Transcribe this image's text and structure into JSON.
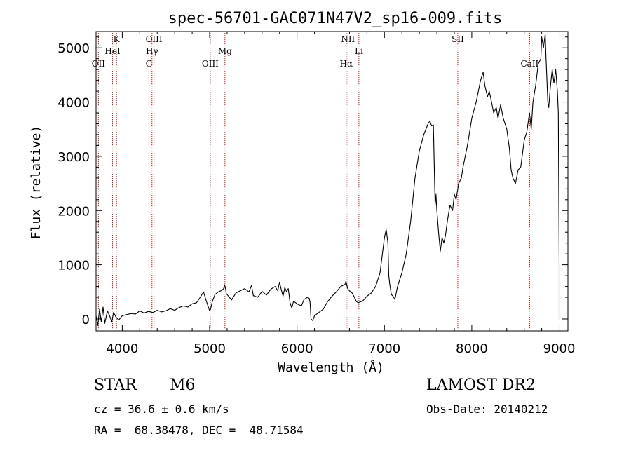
{
  "chart_data": {
    "type": "line",
    "title": "spec-56701-GAC071N47V2_sp16-009.fits",
    "xlabel": "Wavelength (Å)",
    "ylabel": "Flux (relative)",
    "xlim": [
      3700,
      9100
    ],
    "ylim": [
      -220,
      5300
    ],
    "xticks": [
      4000,
      5000,
      6000,
      7000,
      8000,
      9000
    ],
    "yticks": [
      0,
      1000,
      2000,
      3000,
      4000,
      5000
    ],
    "grid": false,
    "line_color": "#000000",
    "marker_color": "#b22222",
    "series": [
      {
        "x": [
          3700,
          3720,
          3740,
          3760,
          3780,
          3800,
          3830,
          3860,
          3880,
          3900,
          3930,
          3960,
          4000,
          4050,
          4100,
          4150,
          4200,
          4250,
          4300,
          4350,
          4400,
          4450,
          4500,
          4550,
          4600,
          4650,
          4700,
          4750,
          4800,
          4850,
          4900,
          4930,
          4960,
          5000,
          5010,
          5030,
          5060,
          5100,
          5130,
          5160,
          5170,
          5180,
          5190,
          5210,
          5250,
          5300,
          5350,
          5400,
          5450,
          5480,
          5500,
          5550,
          5600,
          5650,
          5700,
          5750,
          5780,
          5800,
          5820,
          5840,
          5860,
          5880,
          5900,
          5920,
          5940,
          5960,
          6000,
          6050,
          6080,
          6100,
          6120,
          6140,
          6150,
          6160,
          6180,
          6200,
          6250,
          6300,
          6350,
          6400,
          6450,
          6500,
          6550,
          6560,
          6580,
          6600,
          6630,
          6650,
          6680,
          6700,
          6750,
          6800,
          6850,
          6900,
          6950,
          7000,
          7020,
          7040,
          7050,
          7060,
          7080,
          7100,
          7120,
          7150,
          7200,
          7250,
          7300,
          7350,
          7400,
          7450,
          7500,
          7520,
          7540,
          7560,
          7580,
          7590,
          7600,
          7620,
          7640,
          7660,
          7680,
          7700,
          7720,
          7750,
          7780,
          7800,
          7820,
          7850,
          7880,
          7900,
          7950,
          8000,
          8050,
          8100,
          8130,
          8150,
          8180,
          8200,
          8220,
          8250,
          8280,
          8300,
          8330,
          8360,
          8400,
          8430,
          8450,
          8470,
          8500,
          8530,
          8560,
          8600,
          8630,
          8660,
          8680,
          8700,
          8730,
          8760,
          8790,
          8800,
          8820,
          8840,
          8850,
          8860,
          8870,
          8880,
          8900,
          8920,
          8940,
          8960,
          8980,
          8990,
          9000,
          9000,
          9000
        ],
        "y": [
          60,
          -120,
          180,
          -60,
          220,
          -80,
          150,
          40,
          -60,
          120,
          30,
          -20,
          60,
          80,
          100,
          90,
          150,
          110,
          140,
          120,
          160,
          130,
          150,
          190,
          160,
          210,
          240,
          220,
          280,
          300,
          420,
          500,
          340,
          150,
          180,
          320,
          450,
          500,
          520,
          560,
          630,
          580,
          470,
          430,
          350,
          480,
          520,
          560,
          500,
          620,
          430,
          400,
          510,
          440,
          550,
          600,
          520,
          680,
          540,
          420,
          580,
          500,
          560,
          300,
          200,
          330,
          280,
          240,
          360,
          380,
          400,
          380,
          300,
          0,
          -30,
          60,
          120,
          180,
          320,
          420,
          500,
          600,
          640,
          700,
          560,
          520,
          480,
          420,
          320,
          300,
          330,
          420,
          480,
          600,
          850,
          1500,
          1650,
          1400,
          800,
          650,
          450,
          420,
          360,
          600,
          850,
          1200,
          1800,
          2600,
          3100,
          3400,
          3600,
          3650,
          3560,
          3580,
          2100,
          2300,
          2000,
          1600,
          1250,
          1500,
          1400,
          1550,
          1800,
          2100,
          2000,
          2300,
          2200,
          2500,
          2600,
          2800,
          3200,
          3700,
          4000,
          4400,
          4550,
          4300,
          4100,
          4200,
          4050,
          3800,
          3900,
          3700,
          3950,
          3700,
          3500,
          3150,
          2750,
          2600,
          2500,
          2750,
          2800,
          3300,
          3450,
          3800,
          3500,
          4000,
          4300,
          4700,
          4800,
          5200,
          5000,
          5250,
          4800,
          4400,
          4000,
          3900,
          4300,
          4600,
          4350,
          4600,
          4200,
          3800,
          1000,
          -10,
          1000
        ]
      }
    ],
    "line_markers": [
      {
        "label": "OII",
        "x": 3727,
        "row": 3
      },
      {
        "label": "HeI",
        "x": 3889,
        "row": 2
      },
      {
        "label": "K",
        "x": 3934,
        "row": 1
      },
      {
        "label": "G",
        "x": 4305,
        "row": 3
      },
      {
        "label": "Hγ",
        "x": 4340,
        "row": 2
      },
      {
        "label": "OIII",
        "x": 4363,
        "row": 1
      },
      {
        "label": "OIII",
        "x": 5007,
        "row": 3
      },
      {
        "label": "Mg",
        "x": 5175,
        "row": 2
      },
      {
        "label": "Hα",
        "x": 6563,
        "row": 3
      },
      {
        "label": "NII",
        "x": 6583,
        "row": 1
      },
      {
        "label": "Li",
        "x": 6708,
        "row": 2
      },
      {
        "label": "SII",
        "x": 7840,
        "row": 1
      },
      {
        "label": "CaII",
        "x": 8662,
        "row": 3
      }
    ]
  },
  "info": {
    "object_class": "STAR",
    "subclass": "M6",
    "survey": "LAMOST DR2",
    "cz": "cz = 36.6 ± 0.6 km/s",
    "obs_date": "Obs-Date: 20140212",
    "radec": "RA =  68.38478, DEC =  48.71584"
  }
}
